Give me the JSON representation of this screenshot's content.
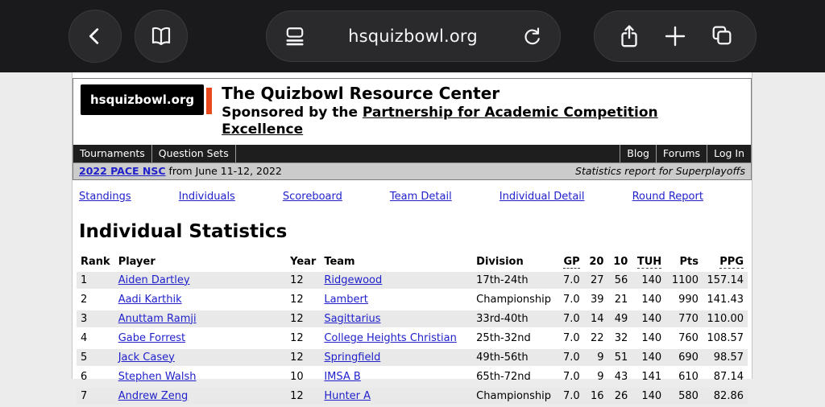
{
  "browser": {
    "url": "hsquizbowl.org",
    "icons": [
      "chevron-left-icon",
      "book-icon",
      "page-menu-icon",
      "reload-icon",
      "share-icon",
      "plus-icon",
      "tabs-icon"
    ]
  },
  "colors": {
    "chrome_bg": "#1a1a1c",
    "accent": "#e8491d",
    "link_blue": "#2121cc",
    "navbar_bg": "#1e1e1e",
    "subbar_bg": "#cbcbcb",
    "row_alt": "#e9e9e9"
  },
  "site": {
    "logo_text": "hsquizbowl.org",
    "title": "The Quizbowl Resource Center",
    "subtitle_prefix": "Sponsored by the ",
    "subtitle_link": "Partnership for Academic Competition Excellence",
    "navbar_left": [
      "Tournaments",
      "Question Sets"
    ],
    "navbar_right": [
      "Blog",
      "Forums",
      "Log In"
    ],
    "subbar": {
      "tournament_link": "2022 PACE NSC",
      "tournament_suffix": " from June 11-12, 2022",
      "report_label": "Statistics report for Superplayoffs"
    },
    "nav_links": [
      "Standings",
      "Individuals",
      "Scoreboard",
      "Team Detail",
      "Individual Detail",
      "Round Report"
    ],
    "heading": "Individual Statistics",
    "table": {
      "columns": [
        {
          "key": "rank",
          "label": "Rank",
          "underline": false
        },
        {
          "key": "player",
          "label": "Player",
          "underline": false
        },
        {
          "key": "year",
          "label": "Year",
          "underline": false
        },
        {
          "key": "team",
          "label": "Team",
          "underline": false
        },
        {
          "key": "division",
          "label": "Division",
          "underline": false
        },
        {
          "key": "gp",
          "label": "GP",
          "underline": true
        },
        {
          "key": "twenties",
          "label": "20",
          "underline": false
        },
        {
          "key": "tens",
          "label": "10",
          "underline": false
        },
        {
          "key": "tuh",
          "label": "TUH",
          "underline": true
        },
        {
          "key": "pts",
          "label": "Pts",
          "underline": false
        },
        {
          "key": "ppg",
          "label": "PPG",
          "underline": true
        }
      ],
      "rows": [
        [
          "1",
          "Aiden Dartley",
          "12",
          "Ridgewood",
          "17th-24th",
          "7.0",
          "27",
          "56",
          "140",
          "1100",
          "157.14"
        ],
        [
          "2",
          "Aadi Karthik",
          "12",
          "Lambert",
          "Championship",
          "7.0",
          "39",
          "21",
          "140",
          "990",
          "141.43"
        ],
        [
          "3",
          "Anuttam Ramji",
          "12",
          "Sagittarius",
          "33rd-40th",
          "7.0",
          "14",
          "49",
          "140",
          "770",
          "110.00"
        ],
        [
          "4",
          "Gabe Forrest",
          "12",
          "College Heights Christian",
          "25th-32nd",
          "7.0",
          "22",
          "32",
          "140",
          "760",
          "108.57"
        ],
        [
          "5",
          "Jack Casey",
          "12",
          "Springfield",
          "49th-56th",
          "7.0",
          "9",
          "51",
          "140",
          "690",
          "98.57"
        ],
        [
          "6",
          "Stephen Walsh",
          "10",
          "IMSA B",
          "65th-72nd",
          "7.0",
          "9",
          "43",
          "141",
          "610",
          "87.14"
        ],
        [
          "7",
          "Andrew Zeng",
          "12",
          "Hunter A",
          "Championship",
          "7.0",
          "16",
          "26",
          "140",
          "580",
          "82.86"
        ]
      ]
    }
  }
}
